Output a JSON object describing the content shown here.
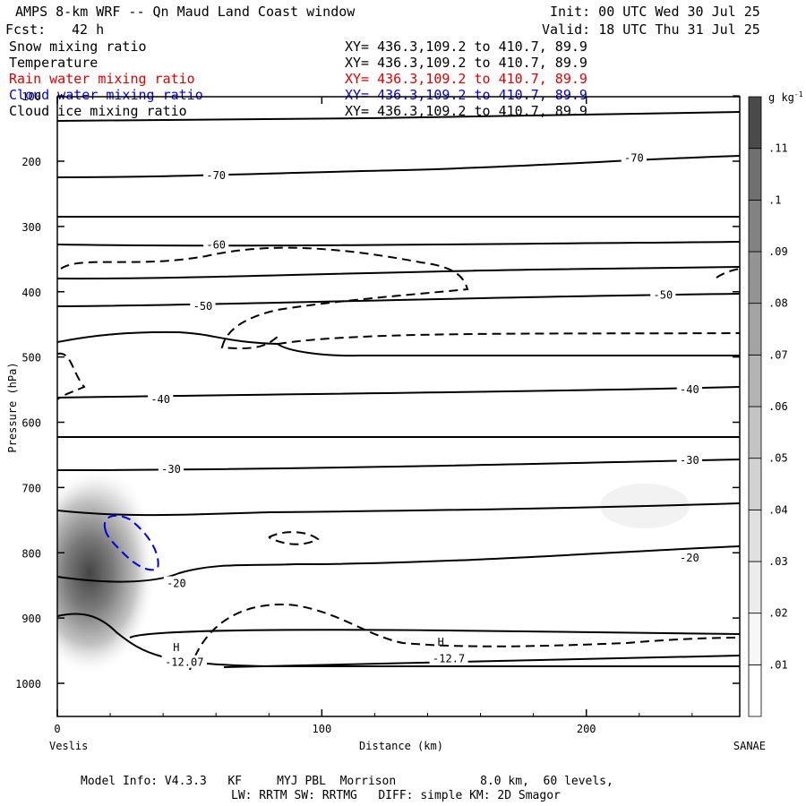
{
  "header": {
    "title": "AMPS 8-km WRF -- Qn Maud Land Coast window",
    "init": "Init: 00 UTC Wed 30 Jul 25",
    "fcst_label": "Fcst:",
    "fcst_value": "42 h",
    "valid": "Valid: 18 UTC Thu 31 Jul 25"
  },
  "fields": [
    {
      "name": "Snow mixing ratio",
      "xy": "XY= 436.3,109.2 to 410.7, 89.9",
      "color": "#000000"
    },
    {
      "name": "Temperature",
      "xy": "XY= 436.3,109.2 to 410.7, 89.9",
      "color": "#000000"
    },
    {
      "name": "Rain water mixing ratio",
      "xy": "XY= 436.3,109.2 to 410.7, 89.9",
      "color": "#e00000"
    },
    {
      "name": "Cloud water mixing ratio",
      "xy": "XY= 436.3,109.2 to 410.7, 89.9",
      "color": "#0000e0"
    },
    {
      "name": "Cloud ice mixing ratio",
      "xy": "XY= 436.3,109.2 to 410.7, 89.9",
      "color": "#000000"
    }
  ],
  "footer": {
    "line1": "Model Info: V4.3.3   KF     MYJ PBL  Morrison            8.0 km,  60 levels,",
    "line2": "LW: RRTM SW: RRTMG   DIFF: simple KM: 2D Smagor"
  },
  "chart_data": {
    "type": "cross-section contour",
    "xlabel": "Distance (km)",
    "ylabel": "Pressure (hPa)",
    "xlim": [
      0,
      258
    ],
    "ylim": [
      1050,
      100
    ],
    "x_ticks": [
      0,
      100,
      200
    ],
    "y_ticks": [
      100,
      200,
      300,
      400,
      500,
      600,
      700,
      800,
      900,
      1000
    ],
    "left_endpoint": "Veslis",
    "right_endpoint": "SANAE",
    "colorbar_unit_base": "g kg",
    "colorbar_unit_exp": "-1",
    "colorbar_levels": [
      ".01",
      ".02",
      ".03",
      ".04",
      ".05",
      ".06",
      ".07",
      ".08",
      ".09",
      ".1",
      ".11"
    ],
    "colorbar_colors": [
      "#ffffff",
      "#f7f7f7",
      "#ececec",
      "#e0e0e0",
      "#d2d2d2",
      "#c4c4c4",
      "#b4b4b4",
      "#a4a4a4",
      "#939393",
      "#828282",
      "#707070",
      "#4a4a4a"
    ],
    "temperature_labels": [
      {
        "text": "-70",
        "x": 60,
        "p": 222
      },
      {
        "text": "-70",
        "x": 218,
        "p": 195
      },
      {
        "text": "-60",
        "x": 60,
        "p": 328
      },
      {
        "text": "-50",
        "x": 55,
        "p": 422
      },
      {
        "text": "-50",
        "x": 229,
        "p": 405
      },
      {
        "text": "-40",
        "x": 39,
        "p": 565
      },
      {
        "text": "-40",
        "x": 239,
        "p": 550
      },
      {
        "text": "-30",
        "x": 43,
        "p": 672
      },
      {
        "text": "-30",
        "x": 239,
        "p": 658
      },
      {
        "text": "-20",
        "x": 45,
        "p": 847
      },
      {
        "text": "-20",
        "x": 239,
        "p": 808
      },
      {
        "text": "-12.07",
        "x": 48,
        "p": 968
      },
      {
        "text": "-12.7",
        "x": 148,
        "p": 962
      }
    ],
    "high_markers": [
      {
        "text": "H",
        "x": 45,
        "p": 945
      },
      {
        "text": "H",
        "x": 145,
        "p": 937
      }
    ]
  }
}
